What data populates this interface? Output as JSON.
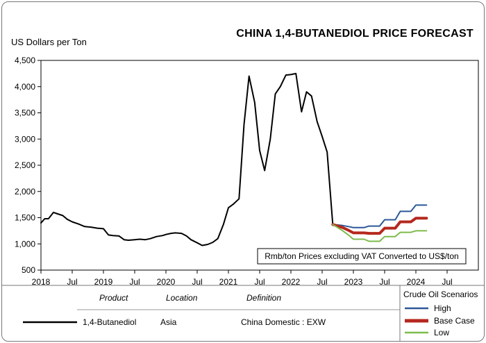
{
  "chart_data": {
    "type": "line",
    "title": "CHINA 1,4-BUTANEDIOL PRICE FORECAST",
    "ylabel": "US Dollars per Ton",
    "xlabel": "",
    "ylim": [
      500,
      4500
    ],
    "yticks": [
      500,
      1000,
      1500,
      2000,
      2500,
      3000,
      3500,
      4000,
      4500
    ],
    "ytick_labels": [
      "500",
      "1,000",
      "1,500",
      "2,000",
      "2,500",
      "3,000",
      "3,500",
      "4,000",
      "4,500"
    ],
    "xlim": [
      2018.0,
      2025.0
    ],
    "xticks": [
      2018.0,
      2018.5,
      2019.0,
      2019.5,
      2020.0,
      2020.5,
      2021.0,
      2021.5,
      2022.0,
      2022.5,
      2023.0,
      2023.5,
      2024.0,
      2024.5
    ],
    "xtick_labels": [
      "2018",
      "Jul",
      "2019",
      "Jul",
      "2020",
      "Jul",
      "2021",
      "Jul",
      "2022",
      "Jul",
      "2023",
      "Jul",
      "2024",
      "Jul"
    ],
    "grid": false,
    "annotation": "Rmb/ton Prices excluding VAT Converted to US$/ton",
    "series": [
      {
        "name": "1,4-Butanediol",
        "color": "#000000",
        "x": [
          2018.0,
          2018.06,
          2018.12,
          2018.2,
          2018.25,
          2018.35,
          2018.42,
          2018.5,
          2018.6,
          2018.7,
          2018.8,
          2018.9,
          2019.0,
          2019.08,
          2019.15,
          2019.25,
          2019.33,
          2019.4,
          2019.5,
          2019.58,
          2019.67,
          2019.75,
          2019.85,
          2019.95,
          2020.0,
          2020.08,
          2020.15,
          2020.25,
          2020.33,
          2020.4,
          2020.5,
          2020.58,
          2020.67,
          2020.75,
          2020.83,
          2020.92,
          2021.0,
          2021.08,
          2021.17,
          2021.25,
          2021.33,
          2021.42,
          2021.5,
          2021.58,
          2021.67,
          2021.75,
          2021.83,
          2021.92,
          2022.0,
          2022.08,
          2022.17,
          2022.25,
          2022.33,
          2022.42,
          2022.5,
          2022.58,
          2022.67
        ],
        "values": [
          1400,
          1480,
          1480,
          1600,
          1580,
          1540,
          1470,
          1420,
          1380,
          1330,
          1320,
          1300,
          1290,
          1170,
          1160,
          1150,
          1080,
          1070,
          1080,
          1090,
          1080,
          1100,
          1140,
          1160,
          1180,
          1200,
          1210,
          1200,
          1150,
          1080,
          1020,
          970,
          990,
          1030,
          1100,
          1370,
          1690,
          1760,
          1860,
          3280,
          4200,
          3700,
          2780,
          2400,
          3000,
          3860,
          4000,
          4220,
          4230,
          4250,
          3520,
          3900,
          3820,
          3330,
          3050,
          2750,
          1370
        ]
      },
      {
        "name": "High",
        "color": "#2b5797",
        "x": [
          2022.67,
          2022.83,
          2022.92,
          2023.0,
          2023.17,
          2023.25,
          2023.42,
          2023.5,
          2023.67,
          2023.75,
          2023.92,
          2024.0,
          2024.17
        ],
        "values": [
          1370,
          1350,
          1330,
          1310,
          1310,
          1340,
          1340,
          1460,
          1460,
          1620,
          1620,
          1740,
          1740
        ]
      },
      {
        "name": "Base Case",
        "color": "#b5281e",
        "x": [
          2022.67,
          2022.83,
          2022.92,
          2023.0,
          2023.17,
          2023.25,
          2023.42,
          2023.5,
          2023.67,
          2023.75,
          2023.92,
          2024.0,
          2024.17
        ],
        "values": [
          1370,
          1310,
          1260,
          1210,
          1210,
          1200,
          1200,
          1300,
          1300,
          1420,
          1420,
          1490,
          1490
        ]
      },
      {
        "name": "Low",
        "color": "#7dbb4c",
        "x": [
          2022.67,
          2022.83,
          2022.92,
          2023.0,
          2023.17,
          2023.25,
          2023.42,
          2023.5,
          2023.67,
          2023.75,
          2023.92,
          2024.0,
          2024.17
        ],
        "values": [
          1370,
          1250,
          1170,
          1090,
          1090,
          1050,
          1050,
          1140,
          1140,
          1220,
          1220,
          1250,
          1250
        ]
      }
    ]
  },
  "table": {
    "headers": [
      "Product",
      "Location",
      "Definition"
    ],
    "row": [
      "1,4-Butanediol",
      "Asia",
      "China Domestic : EXW"
    ]
  },
  "legend": {
    "title": "Crude Oil Scenarios",
    "items": [
      {
        "label": "High",
        "color": "#2b5797"
      },
      {
        "label": "Base Case",
        "color": "#b5281e"
      },
      {
        "label": "Low",
        "color": "#7dbb4c"
      }
    ]
  }
}
